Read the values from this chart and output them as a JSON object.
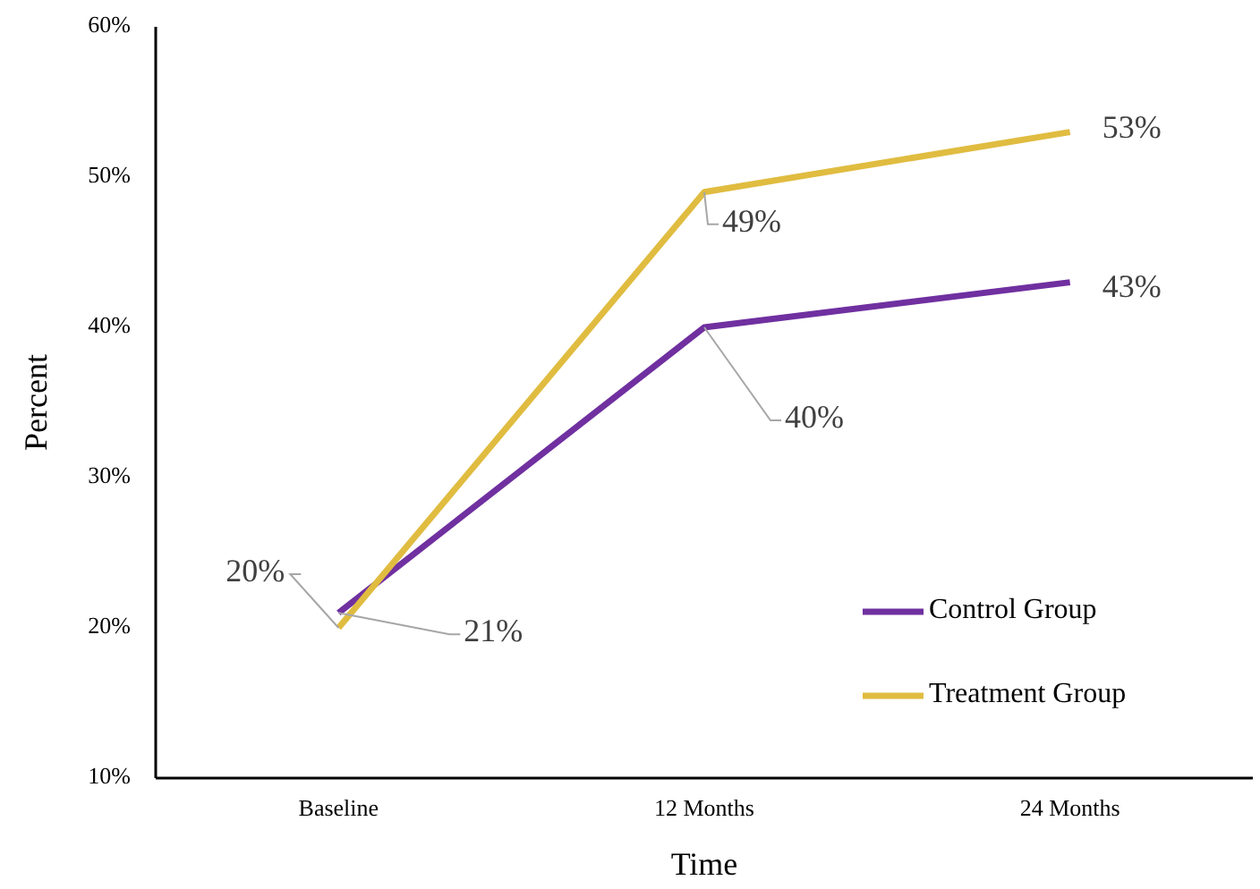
{
  "chart_data": {
    "type": "line",
    "xlabel": "Time",
    "ylabel": "Percent",
    "categories": [
      "Baseline",
      "12 Months",
      "24 Months"
    ],
    "ylim": [
      10,
      60
    ],
    "yticks": [
      {
        "value": 10,
        "label": "10%"
      },
      {
        "value": 20,
        "label": "20%"
      },
      {
        "value": 30,
        "label": "30%"
      },
      {
        "value": 40,
        "label": "40%"
      },
      {
        "value": 50,
        "label": "50%"
      },
      {
        "value": 60,
        "label": "60%"
      }
    ],
    "series": [
      {
        "name": "Control Group",
        "color": "#7030a0",
        "values": [
          21,
          40,
          43
        ],
        "value_labels": [
          "21%",
          "40%",
          "43%"
        ]
      },
      {
        "name": "Treatment Group",
        "color": "#e0bc40",
        "values": [
          20,
          49,
          53
        ],
        "value_labels": [
          "20%",
          "49%",
          "53%"
        ]
      }
    ],
    "legend": "bottom right",
    "grid": false,
    "marker": "none",
    "line_style": "solid"
  }
}
